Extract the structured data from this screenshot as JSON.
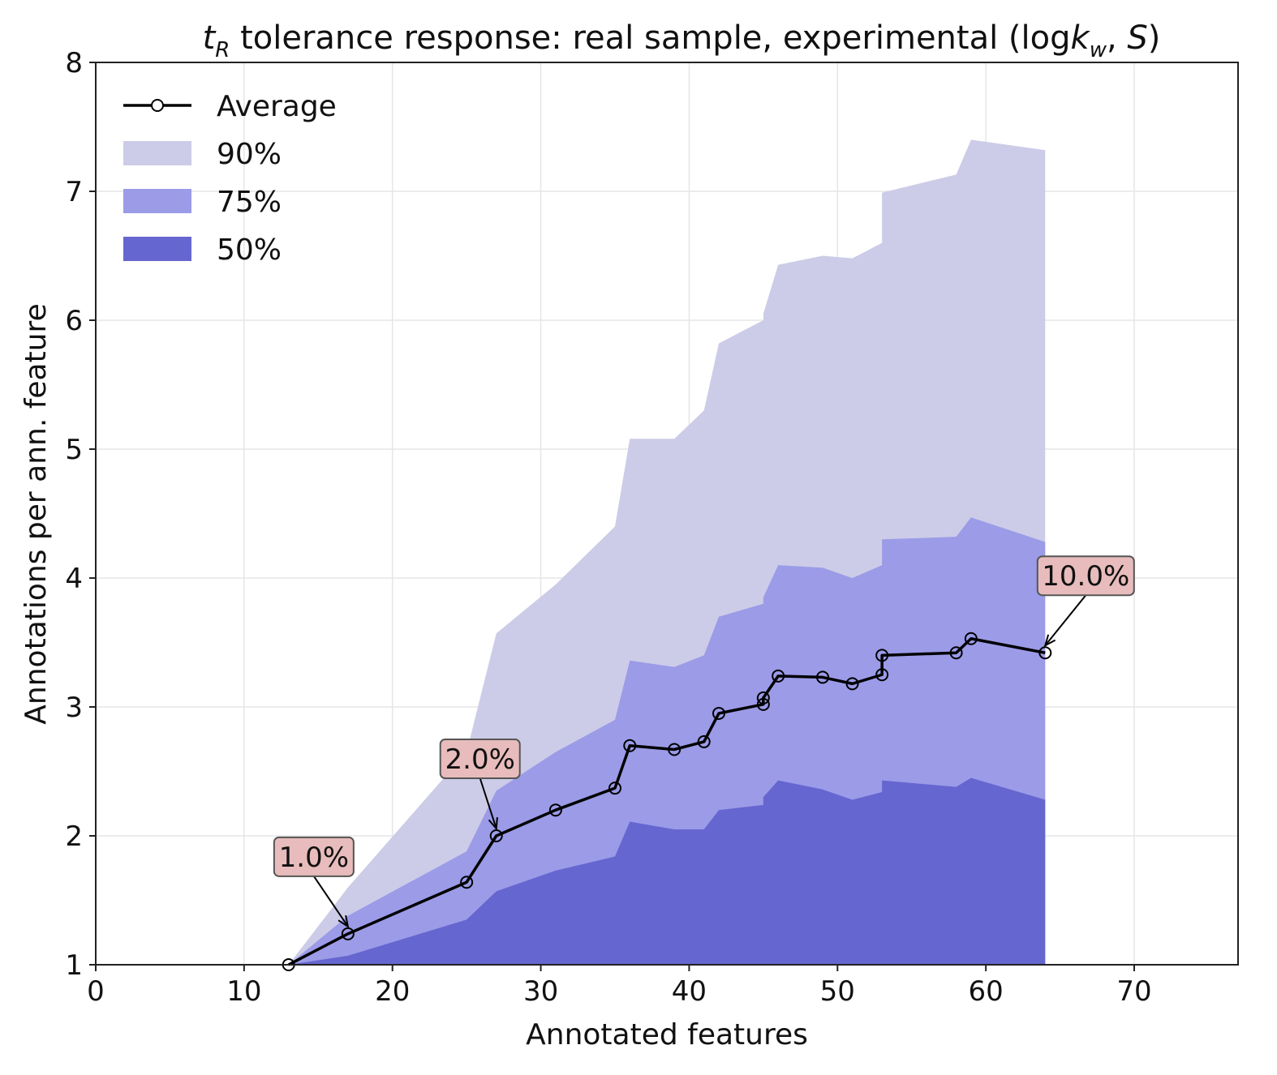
{
  "chart_data": {
    "type": "area",
    "title": {
      "prefix": "t",
      "prefix_sub": "R",
      "main": " tolerance response: real sample, experimental (log",
      "k": "k",
      "k_sub": "w",
      "sep": ", ",
      "s": "S",
      "suffix": ")"
    },
    "xlabel": "Annotated features",
    "ylabel": "Annotations per ann. feature",
    "xlim": [
      0,
      77
    ],
    "ylim": [
      1,
      8
    ],
    "xticks": [
      0,
      10,
      20,
      30,
      40,
      50,
      60,
      70
    ],
    "yticks": [
      1,
      2,
      3,
      4,
      5,
      6,
      7,
      8
    ],
    "grid": true,
    "legend_position": "top-left",
    "legend": [
      {
        "label": "Average",
        "kind": "line",
        "color": "#000000"
      },
      {
        "label": "90%",
        "kind": "band",
        "color": "#cccce8"
      },
      {
        "label": "75%",
        "kind": "band",
        "color": "#9b9be8"
      },
      {
        "label": "50%",
        "kind": "band",
        "color": "#6666d0"
      }
    ],
    "bands": [
      {
        "name": "90%",
        "color": "#cccce8",
        "x": [
          13,
          17,
          25,
          27,
          31,
          35,
          36,
          39,
          41,
          42,
          45,
          45,
          46,
          49,
          51,
          53,
          53,
          58,
          59,
          64
        ],
        "upper": [
          1.0,
          1.6,
          2.65,
          3.57,
          3.95,
          4.4,
          5.08,
          5.08,
          5.3,
          5.82,
          6.0,
          6.05,
          6.43,
          6.5,
          6.48,
          6.6,
          6.99,
          7.13,
          7.4,
          7.32
        ]
      },
      {
        "name": "75%",
        "color": "#9b9be8",
        "x": [
          13,
          17,
          25,
          27,
          31,
          35,
          36,
          39,
          41,
          42,
          45,
          45,
          46,
          49,
          51,
          53,
          53,
          58,
          59,
          64
        ],
        "upper": [
          1.0,
          1.38,
          1.88,
          2.35,
          2.65,
          2.9,
          3.36,
          3.31,
          3.4,
          3.7,
          3.8,
          3.85,
          4.1,
          4.08,
          4.0,
          4.1,
          4.3,
          4.32,
          4.47,
          4.28
        ]
      },
      {
        "name": "50%",
        "color": "#6666d0",
        "x": [
          13,
          17,
          25,
          27,
          31,
          35,
          36,
          39,
          41,
          42,
          45,
          45,
          46,
          49,
          51,
          53,
          53,
          58,
          59,
          64
        ],
        "upper": [
          1.0,
          1.07,
          1.35,
          1.57,
          1.73,
          1.84,
          2.11,
          2.05,
          2.05,
          2.2,
          2.24,
          2.3,
          2.43,
          2.36,
          2.28,
          2.34,
          2.43,
          2.38,
          2.45,
          2.28
        ]
      }
    ],
    "series": [
      {
        "name": "Average",
        "x": [
          13,
          17,
          25,
          27,
          31,
          35,
          36,
          39,
          41,
          42,
          45,
          45,
          46,
          49,
          51,
          53,
          53,
          58,
          59,
          64
        ],
        "y": [
          1.0,
          1.24,
          1.64,
          2.0,
          2.2,
          2.37,
          2.7,
          2.67,
          2.73,
          2.95,
          3.02,
          3.07,
          3.24,
          3.23,
          3.18,
          3.25,
          3.4,
          3.42,
          3.53,
          3.42
        ]
      }
    ],
    "annotations": [
      {
        "text": "1.0%",
        "x": 17,
        "y": 1.24
      },
      {
        "text": "2.0%",
        "x": 27,
        "y": 2.0
      },
      {
        "text": "10.0%",
        "x": 64,
        "y": 3.42
      }
    ],
    "annotation_style": {
      "fill": "#e8bcbc",
      "stroke": "#555555"
    }
  }
}
